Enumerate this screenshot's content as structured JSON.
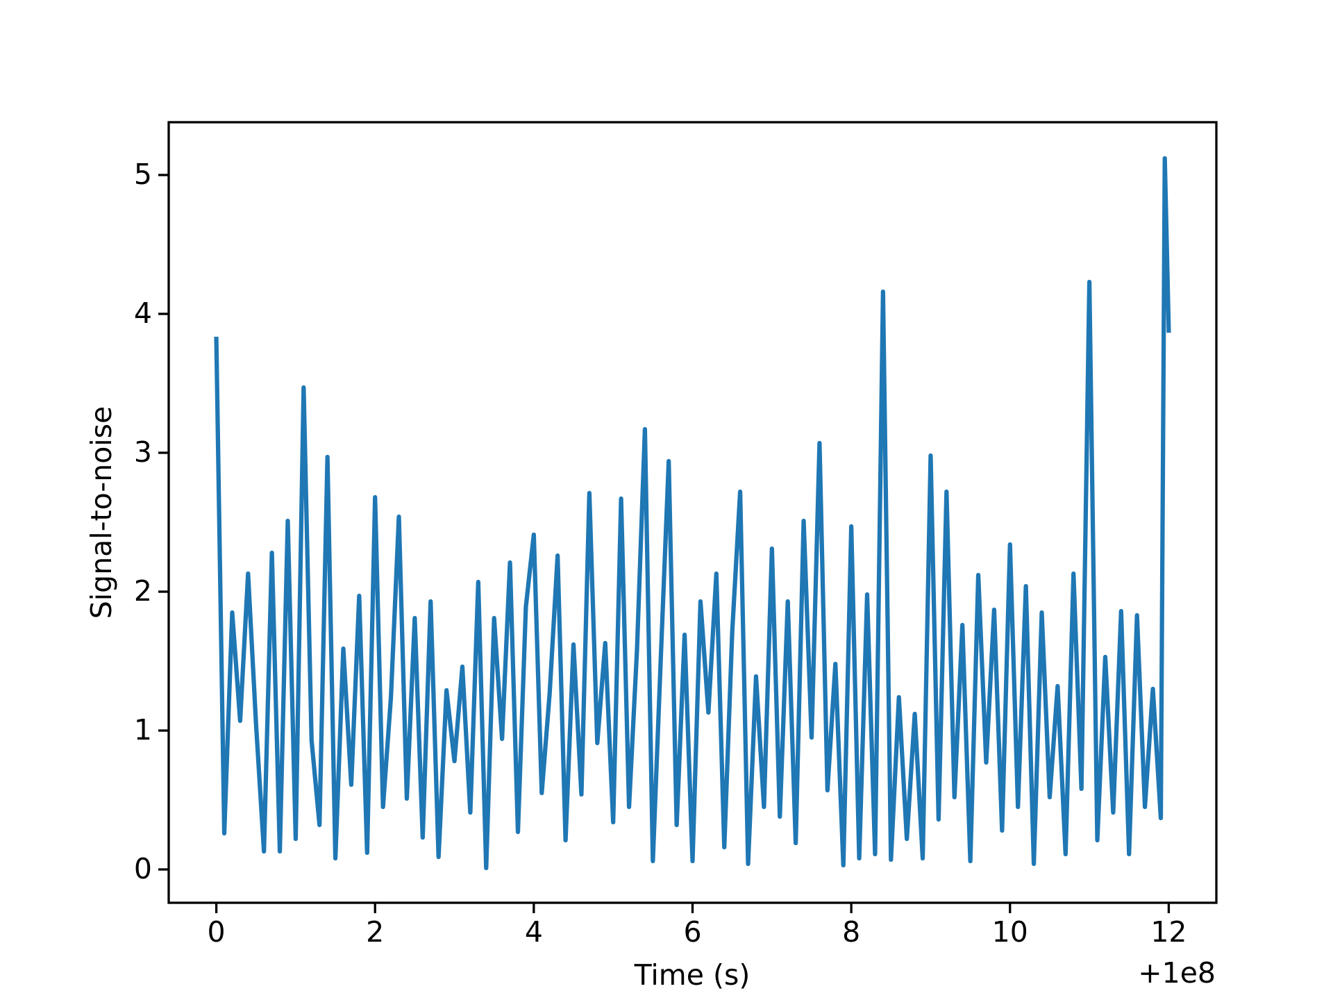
{
  "chart_data": {
    "type": "line",
    "x_label": "Time (s)",
    "y_label": "Signal-to-noise",
    "x_offset_label": "+1e8",
    "x": [
      0.0,
      0.1,
      0.2,
      0.3,
      0.4,
      0.5,
      0.6,
      0.7,
      0.8,
      0.9,
      1.0,
      1.1,
      1.2,
      1.3,
      1.4,
      1.5,
      1.6,
      1.7,
      1.8,
      1.9,
      2.0,
      2.1,
      2.2,
      2.3,
      2.4,
      2.5,
      2.6,
      2.7,
      2.8,
      2.9,
      3.0,
      3.1,
      3.2,
      3.3,
      3.4,
      3.5,
      3.6,
      3.7,
      3.8,
      3.9,
      4.0,
      4.1,
      4.2,
      4.3,
      4.4,
      4.5,
      4.6,
      4.7,
      4.8,
      4.9,
      5.0,
      5.1,
      5.2,
      5.3,
      5.4,
      5.5,
      5.6,
      5.7,
      5.8,
      5.9,
      6.0,
      6.1,
      6.2,
      6.3,
      6.4,
      6.5,
      6.6,
      6.7,
      6.8,
      6.9,
      7.0,
      7.1,
      7.2,
      7.3,
      7.4,
      7.5,
      7.6,
      7.7,
      7.8,
      7.9,
      8.0,
      8.1,
      8.2,
      8.3,
      8.4,
      8.5,
      8.6,
      8.7,
      8.8,
      8.9,
      9.0,
      9.1,
      9.2,
      9.3,
      9.4,
      9.5,
      9.6,
      9.7,
      9.8,
      9.9,
      10.0,
      10.1,
      10.2,
      10.3,
      10.4,
      10.5,
      10.6,
      10.7,
      10.8,
      10.9,
      11.0,
      11.1,
      11.2,
      11.3,
      11.4,
      11.5,
      11.6,
      11.7,
      11.8,
      11.9,
      11.95,
      12.0
    ],
    "series": [
      {
        "color": "#1f77b4",
        "values": [
          3.82,
          0.26,
          1.85,
          1.07,
          2.13,
          1.05,
          0.13,
          2.28,
          0.13,
          2.51,
          0.22,
          3.47,
          0.93,
          0.32,
          2.97,
          0.08,
          1.59,
          0.61,
          1.97,
          0.12,
          2.68,
          0.45,
          1.24,
          2.54,
          0.51,
          1.81,
          0.23,
          1.93,
          0.09,
          1.29,
          0.78,
          1.46,
          0.41,
          2.07,
          0.01,
          1.81,
          0.94,
          2.21,
          0.27,
          1.89,
          2.41,
          0.55,
          1.27,
          2.26,
          0.21,
          1.62,
          0.54,
          2.71,
          0.91,
          1.63,
          0.34,
          2.67,
          0.45,
          1.58,
          3.17,
          0.06,
          1.52,
          2.94,
          0.32,
          1.69,
          0.06,
          1.93,
          1.13,
          2.13,
          0.16,
          1.71,
          2.72,
          0.04,
          1.39,
          0.45,
          2.31,
          0.38,
          1.93,
          0.19,
          2.51,
          0.95,
          3.07,
          0.57,
          1.48,
          0.03,
          2.47,
          0.08,
          1.98,
          0.11,
          4.16,
          0.07,
          1.24,
          0.22,
          1.12,
          0.08,
          2.98,
          0.36,
          2.72,
          0.52,
          1.76,
          0.06,
          2.12,
          0.77,
          1.87,
          0.28,
          2.34,
          0.45,
          2.04,
          0.04,
          1.85,
          0.52,
          1.32,
          0.11,
          2.13,
          0.58,
          4.23,
          0.21,
          1.53,
          0.41,
          1.86,
          0.11,
          1.83,
          0.45,
          1.3,
          0.37,
          5.12,
          3.88
        ]
      }
    ],
    "xlim": [
      -0.6,
      12.6
    ],
    "xticks": [
      0,
      2,
      4,
      6,
      8,
      10,
      12
    ],
    "ylim": [
      -0.24,
      5.38
    ],
    "yticks": [
      0,
      1,
      2,
      3,
      4,
      5
    ],
    "grid": false
  }
}
